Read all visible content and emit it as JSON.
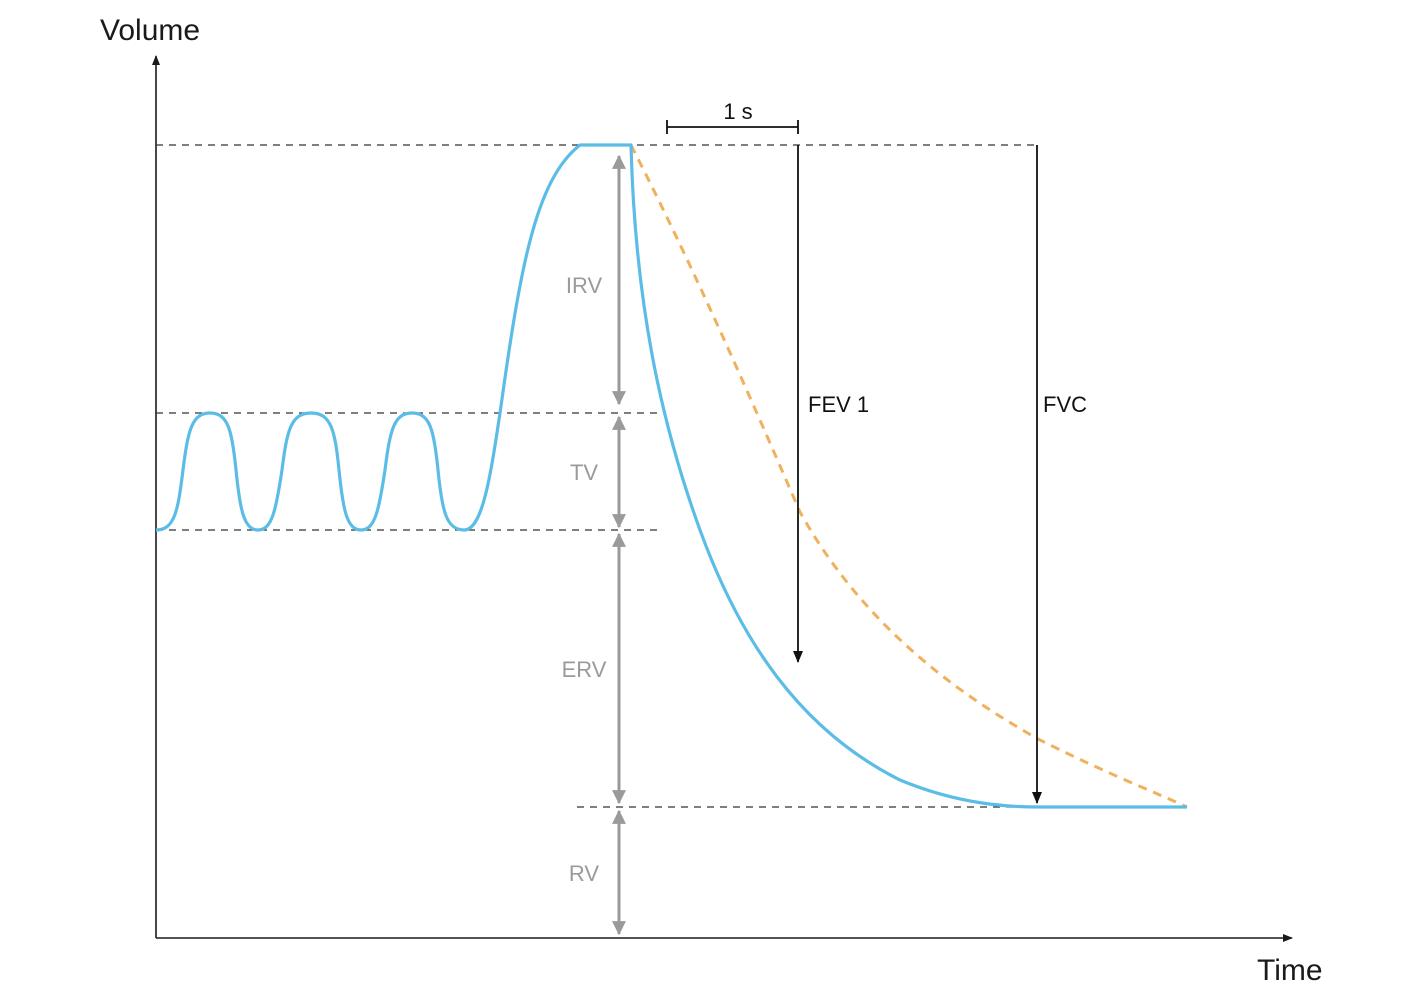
{
  "axes": {
    "y_label": "Volume",
    "x_label": "Time"
  },
  "scale_bar": {
    "label": "1 s"
  },
  "segments": {
    "irv": "IRV",
    "tv": "TV",
    "erv": "ERV",
    "rv": "RV"
  },
  "measurements": {
    "fev1": "FEV 1",
    "fvc": "FVC"
  },
  "colors": {
    "normal_curve": "#5bbde6",
    "comparison_curve": "#f0b15e",
    "segment_arrows": "#9a9a9a",
    "guide_lines": "#333333",
    "axis": "#1a1a1a"
  }
}
